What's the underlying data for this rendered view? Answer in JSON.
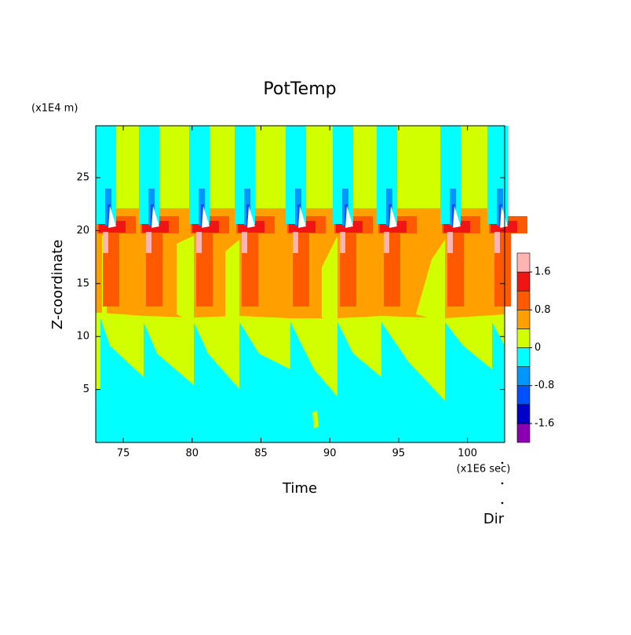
{
  "chart_data": {
    "type": "contour",
    "title": "PotTemp",
    "x_label": "Time",
    "y_label": "Z-coordinate",
    "x_units": "(x1E6 sec)",
    "y_units": "(x1E4 m)",
    "annotation": "Dir",
    "xlim": [
      73,
      102.7
    ],
    "xticks": [
      75,
      80,
      85,
      90,
      95,
      100
    ],
    "ylim": [
      0,
      29.9
    ],
    "yticks": [
      5,
      10,
      15,
      20,
      25
    ],
    "levels": [
      -2,
      -1.6,
      -1.2,
      -0.8,
      -0.4,
      0,
      0.4,
      0.8,
      1.2,
      1.6,
      2
    ],
    "colors": [
      "#8c00b4",
      "#0000c8",
      "#0050ff",
      "#0096ff",
      "#00ffff",
      "#d2ff00",
      "#ffa000",
      "#ff5a00",
      "#f01414",
      "#ffb4b4"
    ],
    "colorbar_ticks": [
      -1.6,
      -0.8,
      0,
      0.8,
      1.6
    ]
  }
}
